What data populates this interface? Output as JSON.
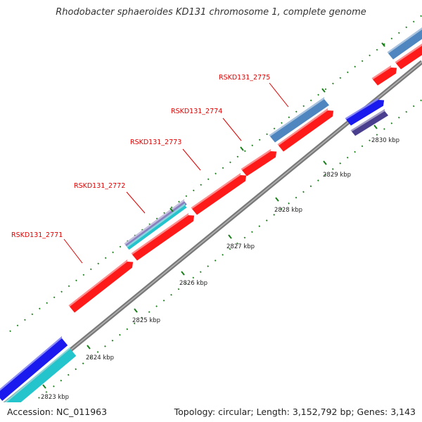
{
  "title": "Rhodobacter sphaeroides KD131 chromosome 1, complete genome",
  "footer": {
    "accession": "Accession: NC_011963",
    "topology": "Topology: circular; Length: 3,152,792 bp; Genes: 3,143"
  },
  "colors": {
    "backbone": "#8a8a8a",
    "gene_forward": "#ff1a1a",
    "gene_blue": "#1a1aee",
    "gene_steelblue": "#4f86bf",
    "gene_cyan": "#24c4cc",
    "gene_slate": "#4a3f8f",
    "gene_lavender": "#8a80bd",
    "label_red": "#e00000",
    "tick_green": "#1a7f1a"
  },
  "gene_labels": [
    {
      "id": "label-2771",
      "text": "RSKD131_2771"
    },
    {
      "id": "label-2772",
      "text": "RSKD131_2772"
    },
    {
      "id": "label-2773",
      "text": "RSKD131_2773"
    },
    {
      "id": "label-2774",
      "text": "RSKD131_2774"
    },
    {
      "id": "label-2775",
      "text": "RSKD131_2775"
    }
  ],
  "tick_labels": [
    "2823 kbp",
    "2824 kbp",
    "2825 kbp",
    "2826 kbp",
    "2827 kbp",
    "2828 kbp",
    "2829 kbp",
    "2830 kbp"
  ]
}
